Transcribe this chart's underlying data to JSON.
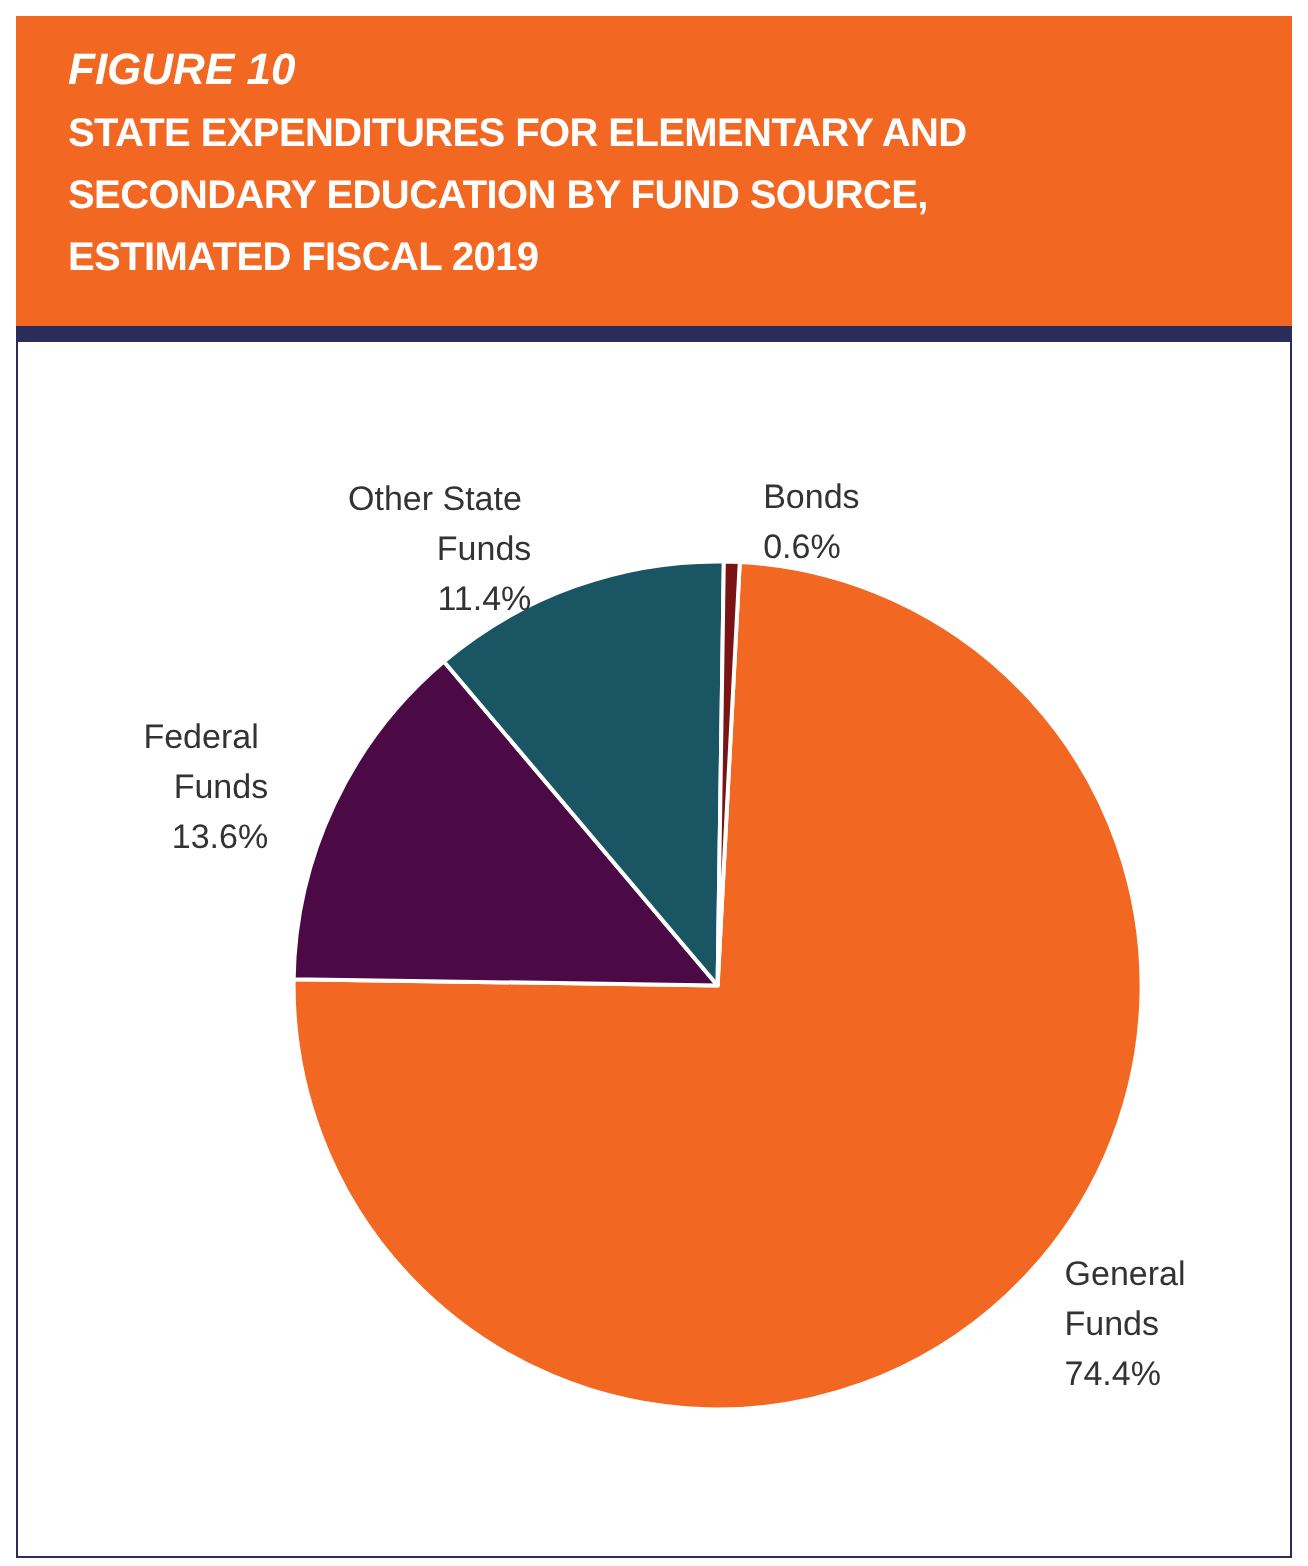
{
  "chart_data": {
    "type": "pie",
    "title": "FIGURE 10",
    "subtitle": "STATE EXPENDITURES FOR ELEMENTARY AND SECONDARY EDUCATION BY FUND SOURCE, ESTIMATED FISCAL 2019",
    "categories": [
      "General Funds",
      "Federal Funds",
      "Other State Funds",
      "Bonds"
    ],
    "values": [
      74.4,
      13.6,
      11.4,
      0.6
    ],
    "colors": [
      "#f26722",
      "#4b0a45",
      "#1a5563",
      "#7a1414"
    ],
    "value_labels": [
      "74.4%",
      "13.6%",
      "11.4%",
      "0.6%"
    ],
    "legend": false
  }
}
